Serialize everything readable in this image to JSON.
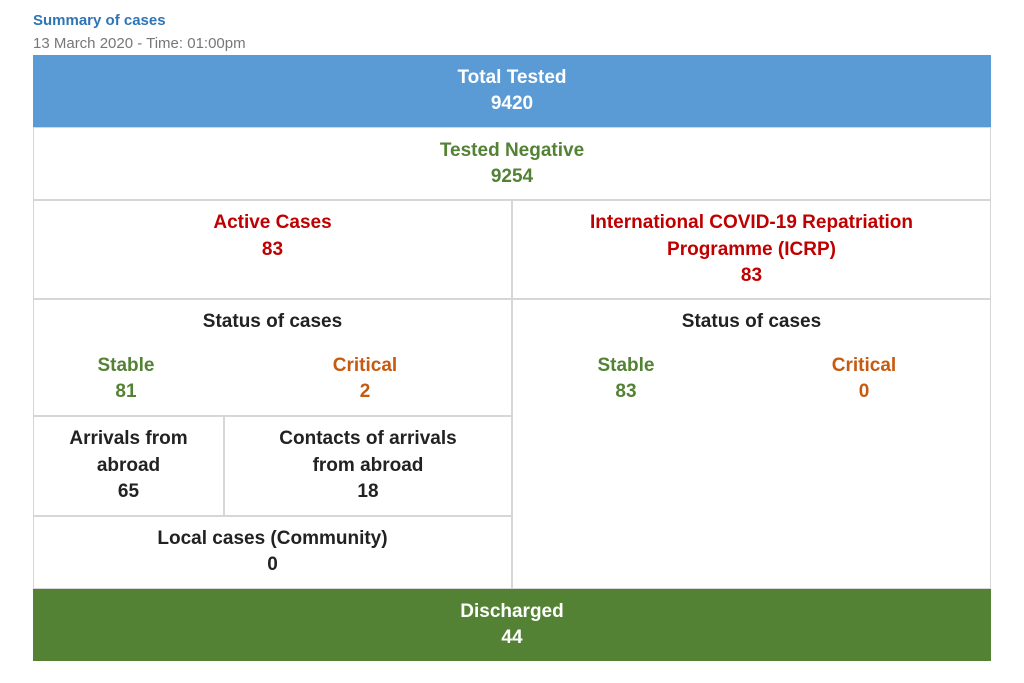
{
  "header": {
    "title": "Summary of cases",
    "date": "13 March 2020 - Time: 01:00pm"
  },
  "table": {
    "total_tested": {
      "label": "Total Tested",
      "value": "9420"
    },
    "tested_negative": {
      "label": "Tested Negative",
      "value": "9254"
    },
    "active_cases": {
      "label": "Active Cases",
      "value": "83"
    },
    "icrp": {
      "label": [
        "International COVID-19 Repatriation",
        "Programme (ICRP)"
      ],
      "value": "83"
    },
    "active_status": {
      "title": "Status of cases",
      "stable_label": "Stable",
      "stable": "81",
      "critical_label": "Critical",
      "critical": "2"
    },
    "icrp_status": {
      "title": "Status of cases",
      "stable_label": "Stable",
      "stable": "83",
      "critical_label": "Critical",
      "critical": "0"
    },
    "arrivals": {
      "label": [
        "Arrivals from",
        "abroad"
      ],
      "value": "65"
    },
    "contacts": {
      "label": [
        "Contacts of arrivals",
        "from abroad"
      ],
      "value": "18"
    },
    "local": {
      "label": "Local cases (Community)",
      "value": "0"
    },
    "discharged": {
      "label": "Discharged",
      "value": "44"
    }
  }
}
